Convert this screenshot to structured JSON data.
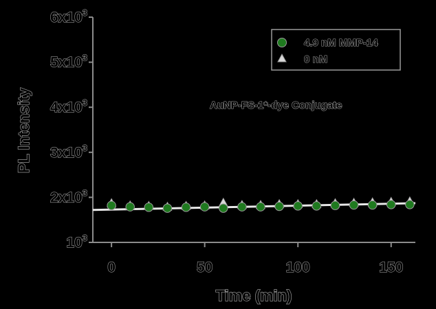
{
  "chart_data": {
    "type": "scatter",
    "title": "",
    "xlabel": "Time (min)",
    "ylabel": "PL Intensity",
    "xlim": [
      -10,
      163
    ],
    "ylim": [
      1000,
      6000
    ],
    "x_ticks": [
      0,
      50,
      100,
      150
    ],
    "x_tick_labels": [
      "0",
      "50",
      "100",
      "150"
    ],
    "y_ticks": [
      1000,
      2000,
      3000,
      4000,
      5000,
      6000
    ],
    "y_tick_labels": [
      {
        "mantissa": "",
        "base": "10",
        "exp": "3"
      },
      {
        "mantissa": "2x",
        "base": "10",
        "exp": "3"
      },
      {
        "mantissa": "3x",
        "base": "10",
        "exp": "3"
      },
      {
        "mantissa": "4x",
        "base": "10",
        "exp": "3"
      },
      {
        "mantissa": "5x",
        "base": "10",
        "exp": "3"
      },
      {
        "mantissa": "6x",
        "base": "10",
        "exp": "3"
      }
    ],
    "grid": false,
    "legend_position": "top-right",
    "annotation": "AuNP-FS-1*-dye Conjugate",
    "series": [
      {
        "name": "4.9 nM MMP-14",
        "marker": "circle",
        "color": "#1f7a1f",
        "x": [
          0,
          10,
          20,
          30,
          40,
          50,
          60,
          70,
          80,
          90,
          100,
          110,
          120,
          130,
          140,
          150,
          160
        ],
        "y": [
          1820,
          1790,
          1780,
          1760,
          1780,
          1790,
          1760,
          1790,
          1790,
          1800,
          1810,
          1810,
          1820,
          1830,
          1830,
          1840,
          1840
        ]
      },
      {
        "name": "0 nM",
        "marker": "triangle",
        "color": "#d8d8d8",
        "x": [
          0,
          10,
          20,
          30,
          40,
          50,
          60,
          70,
          80,
          90,
          100,
          110,
          120,
          130,
          140,
          150,
          160
        ],
        "y": [
          1850,
          1800,
          1790,
          1770,
          1790,
          1800,
          1860,
          1810,
          1810,
          1830,
          1830,
          1830,
          1850,
          1860,
          1870,
          1880,
          1890
        ]
      }
    ],
    "trend_line": {
      "color": "#e8e8e8",
      "x": [
        -10,
        163
      ],
      "y": [
        1720,
        1870
      ]
    }
  }
}
